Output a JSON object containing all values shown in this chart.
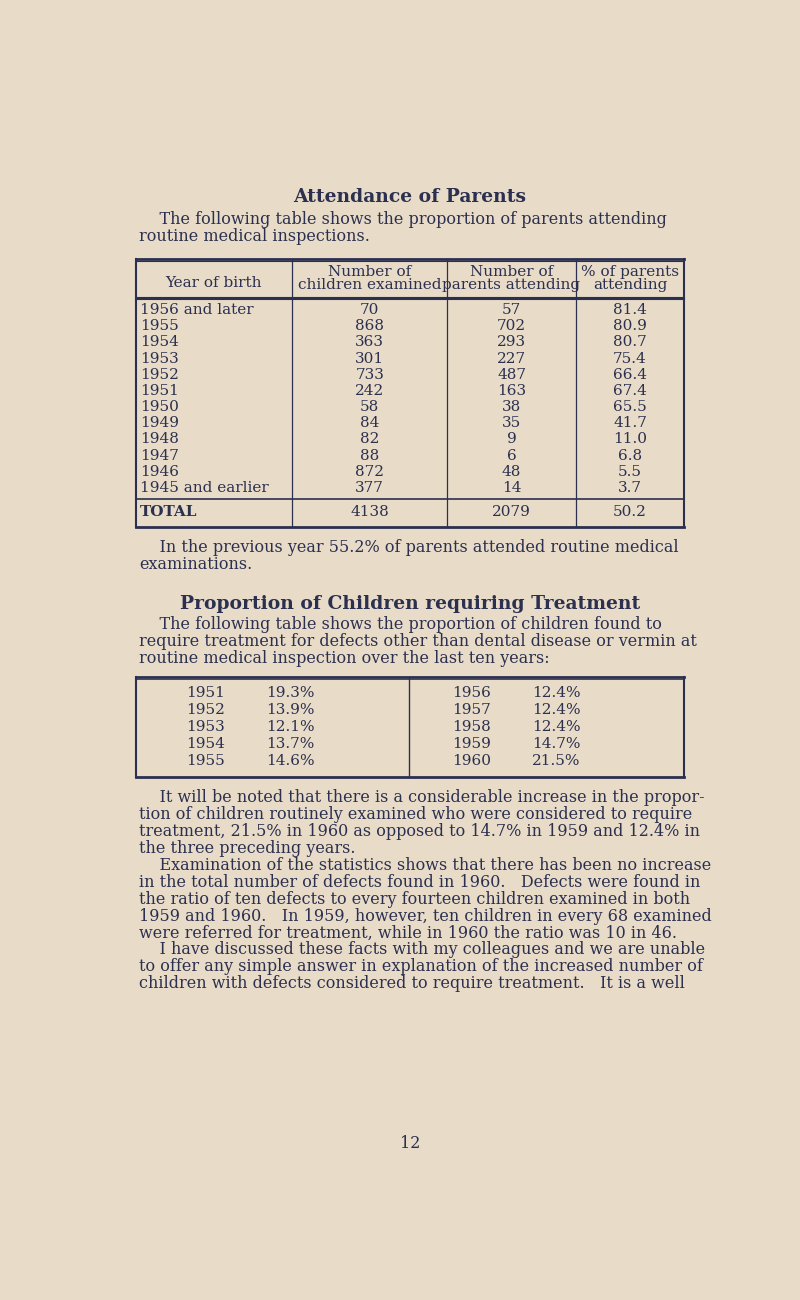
{
  "bg_color": "#e8dcc8",
  "text_color": "#2c3050",
  "title1": "Attendance of Parents",
  "intro1_indent": "    The following table shows the proportion of parents attending",
  "intro1_line2": "routine medical inspections.",
  "table1_headers_line1": [
    "",
    "Number of",
    "Number of",
    "% of parents"
  ],
  "table1_headers_line2": [
    "Year of birth",
    "children examined",
    "parents attending",
    "attending"
  ],
  "table1_rows": [
    [
      "1956 and later",
      "70",
      "57",
      "81.4"
    ],
    [
      "1955",
      "868",
      "702",
      "80.9"
    ],
    [
      "1954",
      "363",
      "293",
      "80.7"
    ],
    [
      "1953",
      "301",
      "227",
      "75.4"
    ],
    [
      "1952",
      "733",
      "487",
      "66.4"
    ],
    [
      "1951",
      "242",
      "163",
      "67.4"
    ],
    [
      "1950",
      "58",
      "38",
      "65.5"
    ],
    [
      "1949",
      "84",
      "35",
      "41.7"
    ],
    [
      "1948",
      "82",
      "9",
      "11.0"
    ],
    [
      "1947",
      "88",
      "6",
      "6.8"
    ],
    [
      "1946",
      "872",
      "48",
      "5.5"
    ],
    [
      "1945 and earlier",
      "377",
      "14",
      "3.7"
    ]
  ],
  "table1_total": [
    "TOTAL",
    "4138",
    "2079",
    "50.2"
  ],
  "note1_indent": "    In the previous year 55.2% of parents attended routine medical",
  "note1_line2": "examinations.",
  "title2": "Proportion of Children requiring Treatment",
  "intro2_indent": "    The following table shows the proportion of children found to",
  "intro2_line2": "require treatment for defects other than dental disease or vermin at",
  "intro2_line3": "routine medical inspection over the last ten years:",
  "table2_left": [
    [
      "1951",
      "19.3%"
    ],
    [
      "1952",
      "13.9%"
    ],
    [
      "1953",
      "12.1%"
    ],
    [
      "1954",
      "13.7%"
    ],
    [
      "1955",
      "14.6%"
    ]
  ],
  "table2_right": [
    [
      "1956",
      "12.4%"
    ],
    [
      "1957",
      "12.4%"
    ],
    [
      "1958",
      "12.4%"
    ],
    [
      "1959",
      "14.7%"
    ],
    [
      "1960",
      "21.5%"
    ]
  ],
  "body_para1_indent": "    It will be noted that there is a considerable increase in the propor-",
  "body_para1_lines": [
    "tion of children routinely examined who were considered to require",
    "treatment, 21.5% in 1960 as opposed to 14.7% in 1959 and 12.4% in",
    "the three preceding years."
  ],
  "body_para2_indent": "    Examination of the statistics shows that there has been no increase",
  "body_para2_lines": [
    "in the total number of defects found in 1960.   Defects were found in",
    "the ratio of ten defects to every fourteen children examined in both",
    "1959 and 1960.   In 1959, however, ten children in every 68 examined",
    "were referred for treatment, while in 1960 the ratio was 10 in 46."
  ],
  "body_para3_indent": "    I have discussed these facts with my colleagues and we are unable",
  "body_para3_lines": [
    "to offer any simple answer in explanation of the increased number of",
    "children with defects considered to require treatment.   It is a well"
  ],
  "page_number": "12",
  "font_size_body": 11.5,
  "font_size_table": 11.0,
  "font_size_title": 13.5
}
